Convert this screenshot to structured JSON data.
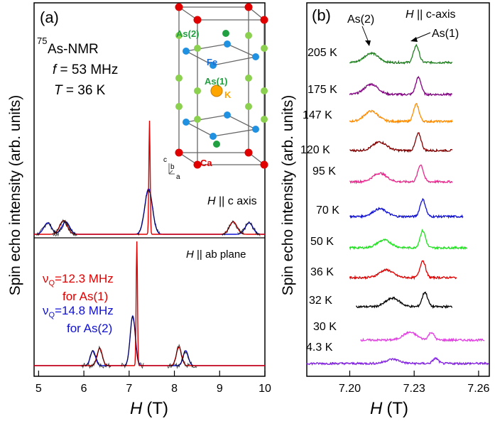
{
  "chart_data": [
    {
      "type": "line",
      "panel_label": "(a)",
      "xlabel": "H",
      "xunit": "(T)",
      "ylabel": "Spin echo intensity (arb. units)",
      "xlim": [
        4.9,
        10
      ],
      "xticks": [
        "5",
        "6",
        "7",
        "8",
        "9",
        "10"
      ],
      "nucleus_sup": "75",
      "nucleus": "As-NMR",
      "freq_label": "f",
      "freq_value": " = 53 MHz",
      "temp_label": "T",
      "temp_value": " = 36 K",
      "top_panel": {
        "field_label": "H",
        "field_suffix": " || c axis",
        "peaks_red": [
          {
            "x": 5.55,
            "h": 0.12
          },
          {
            "x": 7.45,
            "h": 1.0
          },
          {
            "x": 9.3,
            "h": 0.11
          }
        ],
        "peaks_blue": [
          {
            "x": 5.2,
            "h": 0.1
          },
          {
            "x": 5.6,
            "h": 0.11
          },
          {
            "x": 7.43,
            "h": 0.4
          },
          {
            "x": 9.65,
            "h": 0.1
          }
        ]
      },
      "bottom_panel": {
        "field_label": "H",
        "field_suffix": " || ab plane",
        "peaks_red": [
          {
            "x": 6.35,
            "h": 0.14
          },
          {
            "x": 7.17,
            "h": 1.0
          },
          {
            "x": 8.1,
            "h": 0.15
          }
        ],
        "peaks_blue": [
          {
            "x": 6.2,
            "h": 0.12
          },
          {
            "x": 7.08,
            "h": 0.4
          },
          {
            "x": 8.25,
            "h": 0.12
          }
        ]
      },
      "annotations": [
        {
          "label": "ν",
          "sub": "Q",
          "value": "=12.3 MHz",
          "note": "for As(1)",
          "color": "#e00000"
        },
        {
          "label": "ν",
          "sub": "Q",
          "value": "=14.8 MHz",
          "note": "for As(2)",
          "color": "#1010d0"
        }
      ],
      "inset_labels": {
        "as2": "As(2)",
        "fe": "Fe",
        "as1": "As(1)",
        "k": "K",
        "ca": "Ca",
        "axis_c": "c",
        "axis_b": "b",
        "axis_a": "a"
      }
    },
    {
      "type": "line",
      "panel_label": "(b)",
      "xlabel": "H",
      "xunit": "(T)",
      "ylabel": "Spin echo intensity (arb. units)",
      "xlim": [
        7.18,
        7.265
      ],
      "xticks": [
        7.2,
        7.23,
        7.26
      ],
      "xtick_labels": [
        "7.20",
        "7.23",
        "7.26"
      ],
      "field_label": "H",
      "field_suffix": " || c-axis",
      "peak_labels": [
        "As(2)",
        "As(1)"
      ],
      "series": [
        {
          "name": "205 K",
          "color": "#1f7f1f",
          "xrange": [
            7.2,
            7.248
          ],
          "as2_x": 7.21,
          "as2_h": 0.55,
          "as1_x": 7.231,
          "as1_h": 1.0
        },
        {
          "name": "175 K",
          "color": "#800080",
          "xrange": [
            7.2,
            7.248
          ],
          "as2_x": 7.21,
          "as2_h": 0.6,
          "as1_x": 7.232,
          "as1_h": 1.0
        },
        {
          "name": "147 K",
          "color": "#ff8c00",
          "xrange": [
            7.2,
            7.248
          ],
          "as2_x": 7.21,
          "as2_h": 0.6,
          "as1_x": 7.231,
          "as1_h": 1.0
        },
        {
          "name": "120 K",
          "color": "#800000",
          "xrange": [
            7.2,
            7.248
          ],
          "as2_x": 7.214,
          "as2_h": 0.5,
          "as1_x": 7.232,
          "as1_h": 1.0
        },
        {
          "name": "95 K",
          "color": "#e8288c",
          "xrange": [
            7.2,
            7.248
          ],
          "as2_x": 7.214,
          "as2_h": 0.5,
          "as1_x": 7.233,
          "as1_h": 1.0
        },
        {
          "name": "70 K",
          "color": "#1010d0",
          "xrange": [
            7.2,
            7.253
          ],
          "as2_x": 7.214,
          "as2_h": 0.45,
          "as1_x": 7.234,
          "as1_h": 1.0
        },
        {
          "name": "50 K",
          "color": "#20e020",
          "xrange": [
            7.2,
            7.255
          ],
          "as2_x": 7.216,
          "as2_h": 0.45,
          "as1_x": 7.234,
          "as1_h": 1.0
        },
        {
          "name": "36 K",
          "color": "#e00000",
          "xrange": [
            7.2,
            7.25
          ],
          "as2_x": 7.217,
          "as2_h": 0.45,
          "as1_x": 7.234,
          "as1_h": 1.0
        },
        {
          "name": "32 K",
          "color": "#000000",
          "xrange": [
            7.203,
            7.248
          ],
          "as2_x": 7.22,
          "as2_h": 0.5,
          "as1_x": 7.235,
          "as1_h": 0.85
        },
        {
          "name": "30 K",
          "color": "#e040e0",
          "xrange": [
            7.205,
            7.263
          ],
          "as2_x": 7.228,
          "as2_h": 0.45,
          "as1_x": 7.238,
          "as1_h": 0.45
        },
        {
          "name": "4.3 K",
          "color": "#8020e0",
          "xrange": [
            7.18,
            7.265
          ],
          "as2_x": 7.22,
          "as2_h": 0.25,
          "as1_x": 7.24,
          "as1_h": 0.3
        }
      ]
    }
  ]
}
